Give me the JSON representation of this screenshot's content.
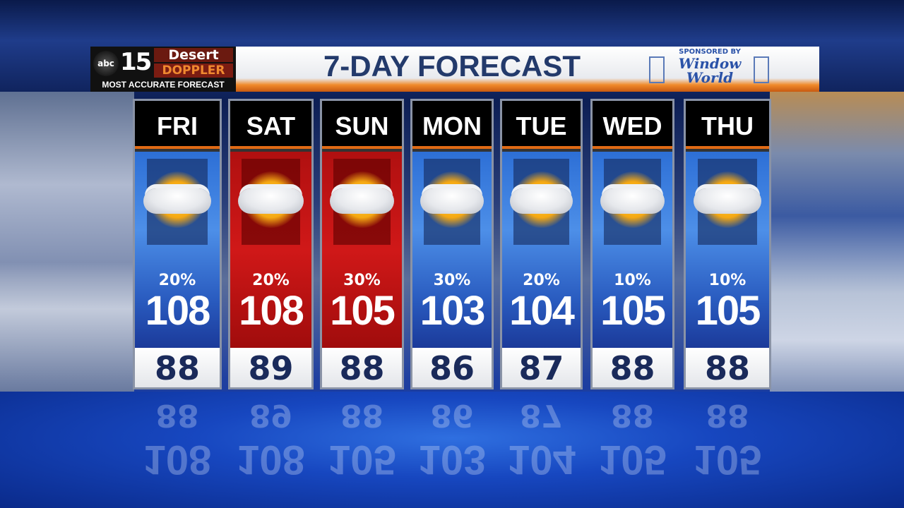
{
  "header": {
    "logo": {
      "network": "abc",
      "channel": "15",
      "brand_line1": "Desert",
      "brand_line2": "DOPPLER",
      "tagline": "MOST ACCURATE FORECAST"
    },
    "title": "7-DAY FORECAST",
    "sponsor": {
      "label": "SPONSORED BY",
      "name_line1": "Window",
      "name_line2": "World"
    }
  },
  "colors": {
    "hot_day": "#c81414",
    "normal_day": "#3a7ae0",
    "accent": "#e06a14",
    "low_text": "#1a2a5a"
  },
  "days": [
    {
      "day": "FRI",
      "icon": "partly-cloudy-sun-icon",
      "pop": "20%",
      "high": "108",
      "low": "88",
      "theme": "blue"
    },
    {
      "day": "SAT",
      "icon": "partly-cloudy-sun-icon",
      "pop": "20%",
      "high": "108",
      "low": "89",
      "theme": "red"
    },
    {
      "day": "SUN",
      "icon": "mostly-cloudy-sun-icon",
      "pop": "30%",
      "high": "105",
      "low": "88",
      "theme": "red"
    },
    {
      "day": "MON",
      "icon": "mostly-cloudy-sun-icon",
      "pop": "30%",
      "high": "103",
      "low": "86",
      "theme": "blue"
    },
    {
      "day": "TUE",
      "icon": "partly-cloudy-sun-icon",
      "pop": "20%",
      "high": "104",
      "low": "87",
      "theme": "blue"
    },
    {
      "day": "WED",
      "icon": "partly-cloudy-sun-icon",
      "pop": "10%",
      "high": "105",
      "low": "88",
      "theme": "blue"
    },
    {
      "day": "THU",
      "icon": "partly-cloudy-sun-icon",
      "pop": "10%",
      "high": "105",
      "low": "88",
      "theme": "blue"
    }
  ]
}
